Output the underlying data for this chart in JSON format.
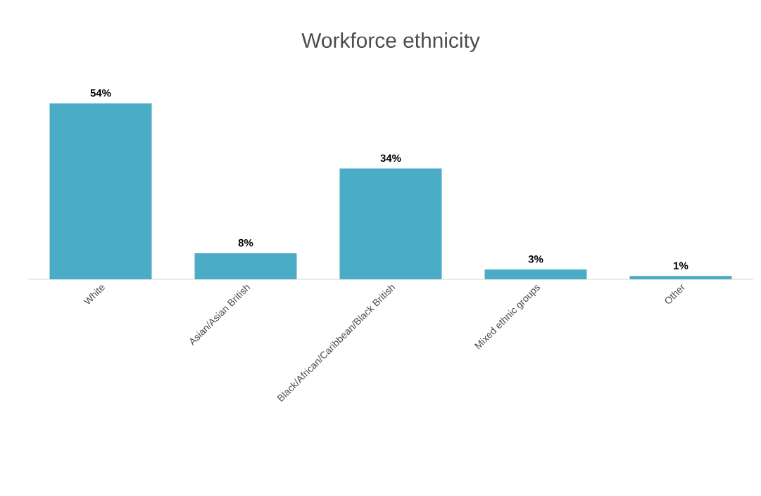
{
  "chart_data": {
    "type": "bar",
    "title": "Workforce ethnicity",
    "categories": [
      "White",
      "Asian/Asian British",
      "Black/African/Caribbean/Black British",
      "Mixed ethnic groups",
      "Other"
    ],
    "values": [
      54,
      8,
      34,
      3,
      1
    ],
    "value_labels": [
      "54%",
      "8%",
      "34%",
      "3%",
      "1%"
    ],
    "color": "#4aacc6"
  }
}
